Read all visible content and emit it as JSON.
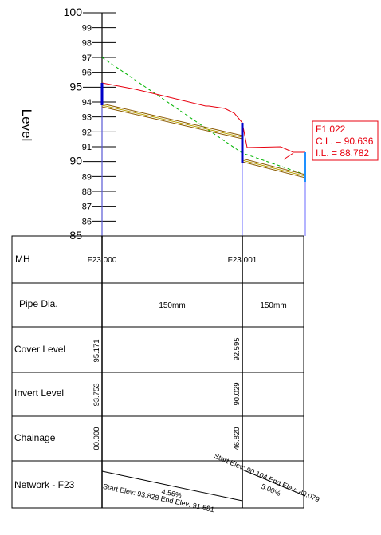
{
  "level_axis": {
    "label": "Level",
    "ticks": [
      "100",
      "99",
      "98",
      "97",
      "96",
      "95",
      "94",
      "93",
      "92",
      "91",
      "90",
      "89",
      "88",
      "87",
      "86",
      "85"
    ]
  },
  "callout": {
    "id": "F1.022",
    "cover_level": "C.L. = 90.636",
    "invert_level": "I.L. = 88.782"
  },
  "table": {
    "rows": [
      {
        "label": "MH"
      },
      {
        "label": "Pipe Dia."
      },
      {
        "label": "Cover Level"
      },
      {
        "label": "Invert Level"
      },
      {
        "label": "Chainage"
      },
      {
        "label": "Network - F23"
      }
    ],
    "manholes": [
      {
        "name": "F23.000",
        "cover_level": "95.171",
        "invert_level": "93.753",
        "chainage": "00.000"
      },
      {
        "name": "F23.001",
        "cover_level": "92.595",
        "invert_level": "90.029",
        "chainage": "46.820"
      }
    ],
    "pipes": [
      {
        "diameter": "150mm",
        "gradient": "4.56%",
        "elevations": "Start Elev: 93.828 End Elev: 91.691"
      },
      {
        "diameter": "150mm",
        "gradient": "5.00%",
        "elevations": "Start Elev: 90.104 End Elev: 89.079"
      }
    ]
  },
  "colors": {
    "ground_line": "#e8000f",
    "design_line": "#00b400",
    "pipe_outer": "#8b5a00",
    "pipe_inner": "#b8a000",
    "manhole": "#0000c8",
    "end_manhole": "#1e90ff",
    "chainage_line": "#6a6aff",
    "grid": "#000000"
  }
}
